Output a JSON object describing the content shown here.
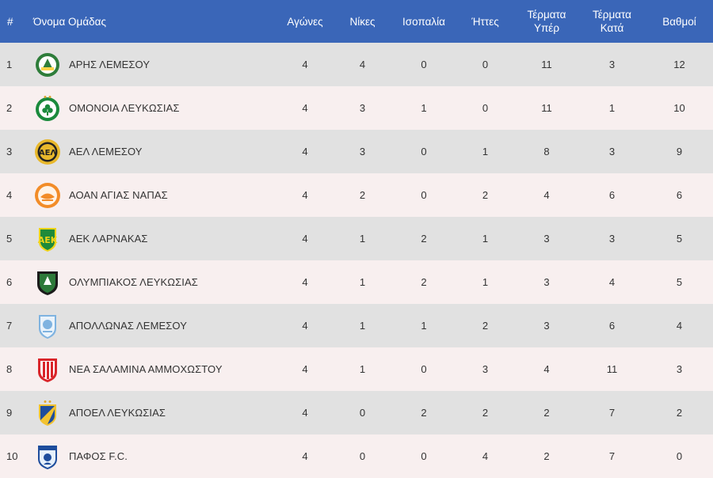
{
  "headers": {
    "pos": "#",
    "team": "Όνομα Ομάδας",
    "played": "Αγώνες",
    "wins": "Νίκες",
    "draws": "Ισοπαλία",
    "losses": "Ήττες",
    "gf_line1": "Τέρματα",
    "gf_line2": "Υπέρ",
    "ga_line1": "Τέρματα",
    "ga_line2": "Κατά",
    "points": "Βαθμοί"
  },
  "colors": {
    "header_bg": "#3a66b8",
    "row_odd": "#e1e1e1",
    "row_even": "#f8efef"
  },
  "rows": [
    {
      "pos": "1",
      "team": "ΑΡΗΣ ΛΕΜΕΣΟΥ",
      "crest": "aris-limassol-crest-icon",
      "played": "4",
      "wins": "4",
      "draws": "0",
      "losses": "0",
      "gf": "11",
      "ga": "3",
      "points": "12"
    },
    {
      "pos": "2",
      "team": "ΟΜΟΝΟΙΑ ΛΕΥΚΩΣΙΑΣ",
      "crest": "omonia-nicosia-crest-icon",
      "played": "4",
      "wins": "3",
      "draws": "1",
      "losses": "0",
      "gf": "11",
      "ga": "1",
      "points": "10"
    },
    {
      "pos": "3",
      "team": "ΑΕΛ ΛΕΜΕΣΟΥ",
      "crest": "ael-limassol-crest-icon",
      "played": "4",
      "wins": "3",
      "draws": "0",
      "losses": "1",
      "gf": "8",
      "ga": "3",
      "points": "9"
    },
    {
      "pos": "4",
      "team": "ΑΟΑΝ ΑΓΙΑΣ ΝΑΠΑΣ",
      "crest": "aoan-agia-napa-crest-icon",
      "played": "4",
      "wins": "2",
      "draws": "0",
      "losses": "2",
      "gf": "4",
      "ga": "6",
      "points": "6"
    },
    {
      "pos": "5",
      "team": "ΑΕΚ ΛΑΡΝΑΚΑΣ",
      "crest": "aek-larnaca-crest-icon",
      "played": "4",
      "wins": "1",
      "draws": "2",
      "losses": "1",
      "gf": "3",
      "ga": "3",
      "points": "5"
    },
    {
      "pos": "6",
      "team": "ΟΛΥΜΠΙΑΚΟΣ ΛΕΥΚΩΣΙΑΣ",
      "crest": "olympiakos-nicosia-crest-icon",
      "played": "4",
      "wins": "1",
      "draws": "2",
      "losses": "1",
      "gf": "3",
      "ga": "4",
      "points": "5"
    },
    {
      "pos": "7",
      "team": "ΑΠΟΛΛΩΝΑΣ ΛΕΜΕΣΟΥ",
      "crest": "apollon-limassol-crest-icon",
      "played": "4",
      "wins": "1",
      "draws": "1",
      "losses": "2",
      "gf": "3",
      "ga": "6",
      "points": "4"
    },
    {
      "pos": "8",
      "team": "ΝΕΑ ΣΑΛΑΜΙΝΑ ΑΜΜΟΧΩΣΤΟΥ",
      "crest": "nea-salamis-crest-icon",
      "played": "4",
      "wins": "1",
      "draws": "0",
      "losses": "3",
      "gf": "4",
      "ga": "11",
      "points": "3"
    },
    {
      "pos": "9",
      "team": "ΑΠΟΕΛ ΛΕΥΚΩΣΙΑΣ",
      "crest": "apoel-nicosia-crest-icon",
      "played": "4",
      "wins": "0",
      "draws": "2",
      "losses": "2",
      "gf": "2",
      "ga": "7",
      "points": "2"
    },
    {
      "pos": "10",
      "team": "ΠΑΦΟΣ F.C.",
      "crest": "pafos-fc-crest-icon",
      "played": "4",
      "wins": "0",
      "draws": "0",
      "losses": "4",
      "gf": "2",
      "ga": "7",
      "points": "0"
    }
  ]
}
